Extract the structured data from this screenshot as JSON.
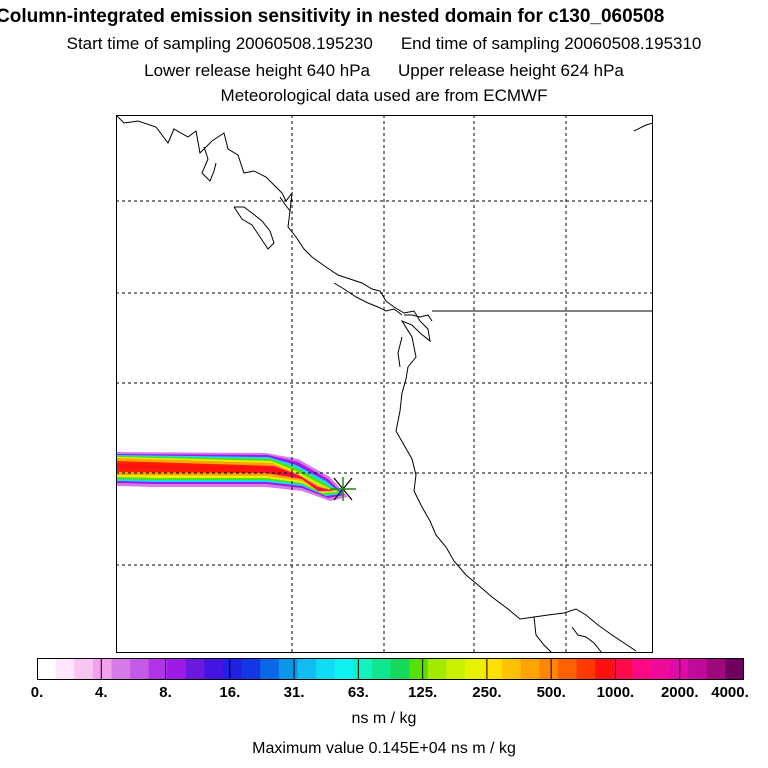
{
  "header": {
    "title": "Column-integrated emission sensitivity in nested domain for c130_060508",
    "start_sampling": "Start time of sampling 20060508.195230",
    "end_sampling": "End time of sampling 20060508.195310",
    "lower_release": "Lower release height  640 hPa",
    "upper_release": "Upper release height  624 hPa",
    "met_data": "Meteorological data used are from ECMWF"
  },
  "colorbar": {
    "tick_labels": [
      "0.",
      "4.",
      "8.",
      "16.",
      "31.",
      "63.",
      "125.",
      "250.",
      "500.",
      "1000.",
      "2000.",
      "4000."
    ],
    "colors": [
      "#ffffff",
      "#fde6fb",
      "#f9c6f3",
      "#f2a2ec",
      "#d77ae9",
      "#c45ae6",
      "#b233e8",
      "#9d1ae9",
      "#6a1ae0",
      "#4414e0",
      "#2020e4",
      "#1437e6",
      "#0a68e8",
      "#0b96ea",
      "#10bdf0",
      "#12dbf4",
      "#10f2f2",
      "#11f2c0",
      "#10e690",
      "#16d95c",
      "#56e000",
      "#a2ea00",
      "#c8f000",
      "#e6f200",
      "#ffe000",
      "#ffc200",
      "#ffa400",
      "#ff8600",
      "#ff6000",
      "#ff3a00",
      "#ff1010",
      "#ff0a4a",
      "#ff0a84",
      "#f00a9a",
      "#e00aa8",
      "#c00a9a",
      "#a0087e",
      "#700060"
    ],
    "units": "ns m / kg"
  },
  "footer": {
    "max_value": "Maximum value  0.145E+04 ns m / kg"
  }
}
